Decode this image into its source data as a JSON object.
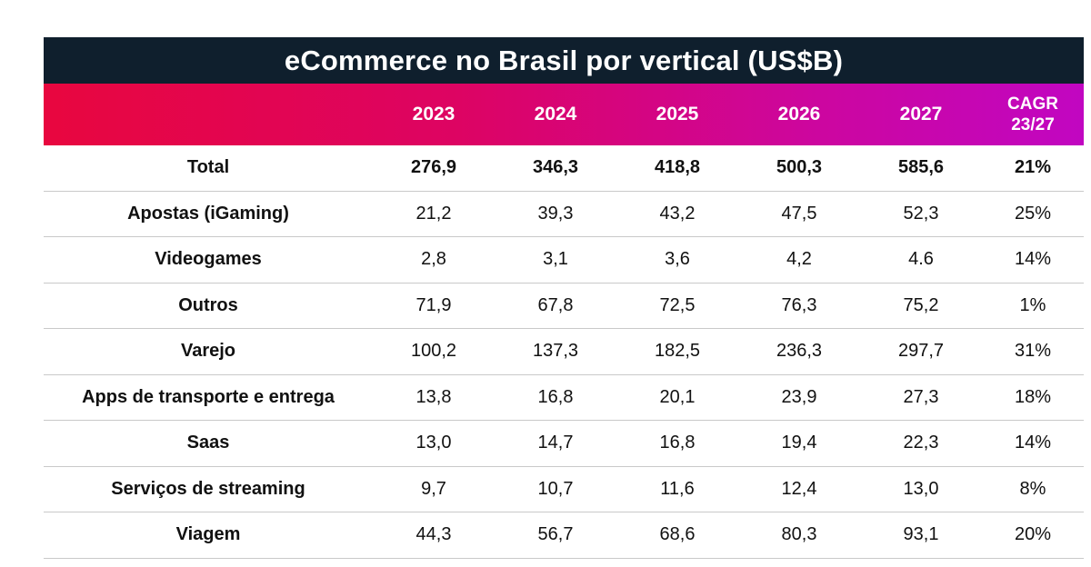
{
  "chart_data": {
    "type": "table",
    "title": "eCommerce no Brasil por vertical (US$B)",
    "columns": [
      "",
      "2023",
      "2024",
      "2025",
      "2026",
      "2027",
      "CAGR\n23/27"
    ],
    "rows": [
      {
        "label": "Total",
        "values": [
          "276,9",
          "346,3",
          "418,8",
          "500,3",
          "585,6"
        ],
        "cagr": "21%"
      },
      {
        "label": "Apostas (iGaming)",
        "values": [
          "21,2",
          "39,3",
          "43,2",
          "47,5",
          "52,3"
        ],
        "cagr": "25%"
      },
      {
        "label": "Videogames",
        "values": [
          "2,8",
          "3,1",
          "3,6",
          "4,2",
          "4.6"
        ],
        "cagr": "14%"
      },
      {
        "label": "Outros",
        "values": [
          "71,9",
          "67,8",
          "72,5",
          "76,3",
          "75,2"
        ],
        "cagr": "1%"
      },
      {
        "label": "Varejo",
        "values": [
          "100,2",
          "137,3",
          "182,5",
          "236,3",
          "297,7"
        ],
        "cagr": "31%"
      },
      {
        "label": "Apps de transporte e entrega",
        "values": [
          "13,8",
          "16,8",
          "20,1",
          "23,9",
          "27,3"
        ],
        "cagr": "18%"
      },
      {
        "label": "Saas",
        "values": [
          "13,0",
          "14,7",
          "16,8",
          "19,4",
          "22,3"
        ],
        "cagr": "14%"
      },
      {
        "label": "Serviços de streaming",
        "values": [
          "9,7",
          "10,7",
          "11,6",
          "12,4",
          "13,0"
        ],
        "cagr": "8%"
      },
      {
        "label": "Viagem",
        "values": [
          "44,3",
          "56,7",
          "68,6",
          "80,3",
          "93,1"
        ],
        "cagr": "20%"
      }
    ]
  },
  "colors": {
    "title_bg": "#0f1f2d",
    "header_gradient_start": "#e8063f",
    "header_gradient_end": "#c106c1",
    "row_divider": "#c9c9c9"
  }
}
